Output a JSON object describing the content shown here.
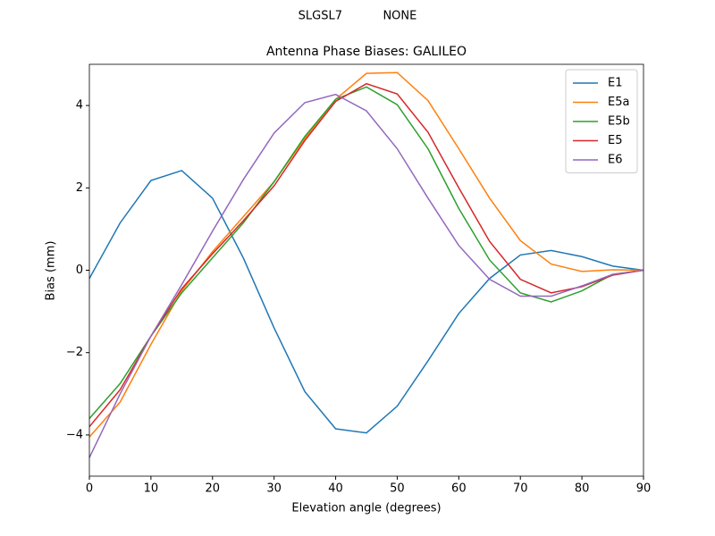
{
  "chart_data": {
    "type": "line",
    "suptitle": "SLGSL7           NONE",
    "title": "Antenna Phase Biases: GALILEO",
    "xlabel": "Elevation angle (degrees)",
    "ylabel": "Bias (mm)",
    "x": [
      0,
      5,
      10,
      15,
      20,
      25,
      30,
      35,
      40,
      45,
      50,
      55,
      60,
      65,
      70,
      75,
      80,
      85,
      90
    ],
    "series": [
      {
        "name": "E1",
        "color": "#1f77b4",
        "values": [
          -0.2,
          1.15,
          2.18,
          2.42,
          1.75,
          0.3,
          -1.4,
          -2.95,
          -3.85,
          -3.95,
          -3.3,
          -2.2,
          -1.05,
          -0.2,
          0.37,
          0.48,
          0.33,
          0.1,
          0.0
        ]
      },
      {
        "name": "E5a",
        "color": "#ff7f0e",
        "values": [
          -4.05,
          -3.2,
          -1.8,
          -0.5,
          0.45,
          1.3,
          2.15,
          3.2,
          4.15,
          4.78,
          4.8,
          4.12,
          2.95,
          1.75,
          0.72,
          0.15,
          -0.03,
          0.01,
          0.0
        ]
      },
      {
        "name": "E5b",
        "color": "#2ca02c",
        "values": [
          -3.6,
          -2.75,
          -1.6,
          -0.55,
          0.3,
          1.15,
          2.15,
          3.25,
          4.15,
          4.45,
          4.02,
          2.95,
          1.5,
          0.25,
          -0.55,
          -0.77,
          -0.5,
          -0.1,
          0.0
        ]
      },
      {
        "name": "E5",
        "color": "#d62728",
        "values": [
          -3.8,
          -2.9,
          -1.6,
          -0.45,
          0.4,
          1.2,
          2.05,
          3.15,
          4.1,
          4.53,
          4.28,
          3.35,
          2.0,
          0.7,
          -0.22,
          -0.55,
          -0.4,
          -0.12,
          0.0
        ]
      },
      {
        "name": "E6",
        "color": "#9467bd",
        "values": [
          -4.55,
          -3.0,
          -1.6,
          -0.35,
          0.95,
          2.2,
          3.33,
          4.07,
          4.27,
          3.87,
          2.95,
          1.75,
          0.6,
          -0.22,
          -0.63,
          -0.63,
          -0.38,
          -0.1,
          0.0
        ]
      }
    ],
    "xlim": [
      0,
      90
    ],
    "ylim": [
      -5,
      5
    ],
    "xticks": [
      0,
      10,
      20,
      30,
      40,
      50,
      60,
      70,
      80,
      90
    ],
    "yticks": [
      {
        "value": -4,
        "label": "−4"
      },
      {
        "value": -2,
        "label": "−2"
      },
      0,
      2,
      4
    ],
    "grid": false,
    "legend": "upper right"
  }
}
